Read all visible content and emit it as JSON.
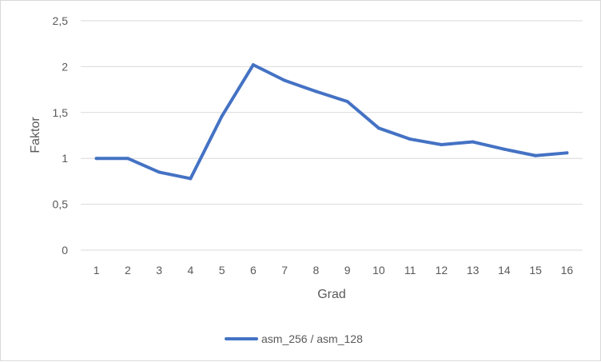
{
  "chart_data": {
    "type": "line",
    "title": "",
    "xlabel": "Grad",
    "ylabel": "Faktor",
    "categories": [
      "1",
      "2",
      "3",
      "4",
      "5",
      "6",
      "7",
      "8",
      "9",
      "10",
      "11",
      "12",
      "13",
      "14",
      "15",
      "16"
    ],
    "ylim": [
      0,
      2.5
    ],
    "yticks": [
      0,
      0.5,
      1,
      1.5,
      2,
      2.5
    ],
    "ytick_labels": [
      "0",
      "0,5",
      "1",
      "1,5",
      "2",
      "2,5"
    ],
    "grid": true,
    "legend": "bottom",
    "series": [
      {
        "name": "asm_256 / asm_128",
        "color": "#4472c4",
        "values": [
          1.0,
          1.0,
          0.85,
          0.78,
          1.46,
          2.02,
          1.85,
          1.73,
          1.62,
          1.33,
          1.21,
          1.15,
          1.18,
          1.1,
          1.03,
          1.06
        ]
      }
    ]
  }
}
